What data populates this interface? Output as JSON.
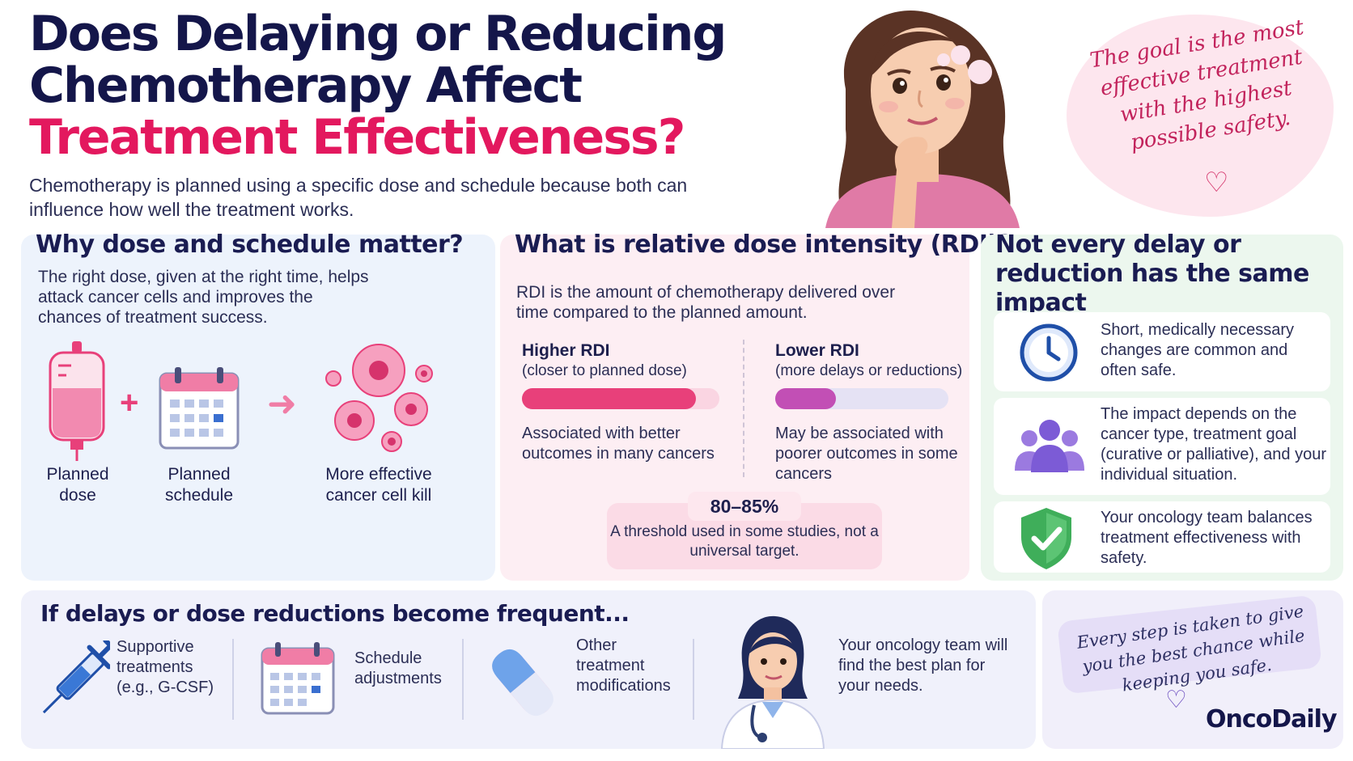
{
  "title": {
    "line1": "Does Delaying or Reducing",
    "line2": "Chemotherapy Affect",
    "line3": "Treatment Effectiveness?"
  },
  "intro": "Chemotherapy is planned using a specific dose and schedule because both can influence how well the treatment works.",
  "thought_bubble": {
    "text": "The goal is the most effective treatment with the highest possible safety.",
    "icon": "heart-icon"
  },
  "dose_schedule": {
    "heading": "Why dose and schedule matter?",
    "body": "The right dose, given at the right time, helps attack cancer cells and improves the chances of treatment success.",
    "items": [
      {
        "label": "Planned dose",
        "icon": "iv-bag-icon"
      },
      {
        "label": "Planned schedule",
        "icon": "calendar-icon"
      },
      {
        "label": "More effective cancer cell kill",
        "icon": "cancer-cells-icon"
      }
    ],
    "plus": "+",
    "arrow": "➜"
  },
  "rdi": {
    "heading": "What is relative dose intensity (RDI)?",
    "body": "RDI is the amount of chemotherapy delivered over time compared to the planned amount.",
    "higher": {
      "title": "Higher RDI",
      "subtitle": "(closer to planned dose)",
      "outcome": "Associated with better outcomes in many cancers",
      "fill_fraction": 0.88,
      "color": "#e8407a"
    },
    "lower": {
      "title": "Lower RDI",
      "subtitle": "(more delays or reductions)",
      "outcome": "May be associated with poorer outcomes in some cancers",
      "fill_fraction": 0.35,
      "color": "#c24fb5"
    },
    "threshold": {
      "value": "80–85%",
      "text": "A threshold used in some studies, not a universal target."
    }
  },
  "impact": {
    "heading": "Not every delay or reduction has the same impact",
    "cards": [
      {
        "text": "Short, medically necessary changes are common and often safe.",
        "icon": "clock-icon"
      },
      {
        "text": "The impact depends on the cancer type, treatment goal (curative or palliative), and your individual situation.",
        "icon": "people-icon"
      },
      {
        "text": "Your oncology team balances treatment effectiveness with safety.",
        "icon": "shield-check-icon"
      }
    ]
  },
  "frequent": {
    "heading": "If delays or dose reductions become frequent...",
    "items": [
      {
        "text": "Supportive treatments (e.g., G-CSF)",
        "icon": "syringe-icon"
      },
      {
        "text": "Schedule adjustments",
        "icon": "calendar-icon"
      },
      {
        "text": "Other treatment modifications",
        "icon": "pill-icon"
      },
      {
        "text": "Your oncology team will find the best plan for your needs.",
        "icon": "doctor-icon"
      }
    ]
  },
  "closing": {
    "text": "Every step is taken to give you the best chance while keeping you safe.",
    "icon": "heart-icon"
  },
  "brand": "OncoDaily",
  "colors": {
    "navy": "#14164a",
    "accent_pink": "#e3185e",
    "panel_blue": "#edf3fc",
    "panel_pink": "#fdeef3",
    "panel_green": "#ecf7ee",
    "panel_lavender": "#f0f1fb"
  }
}
